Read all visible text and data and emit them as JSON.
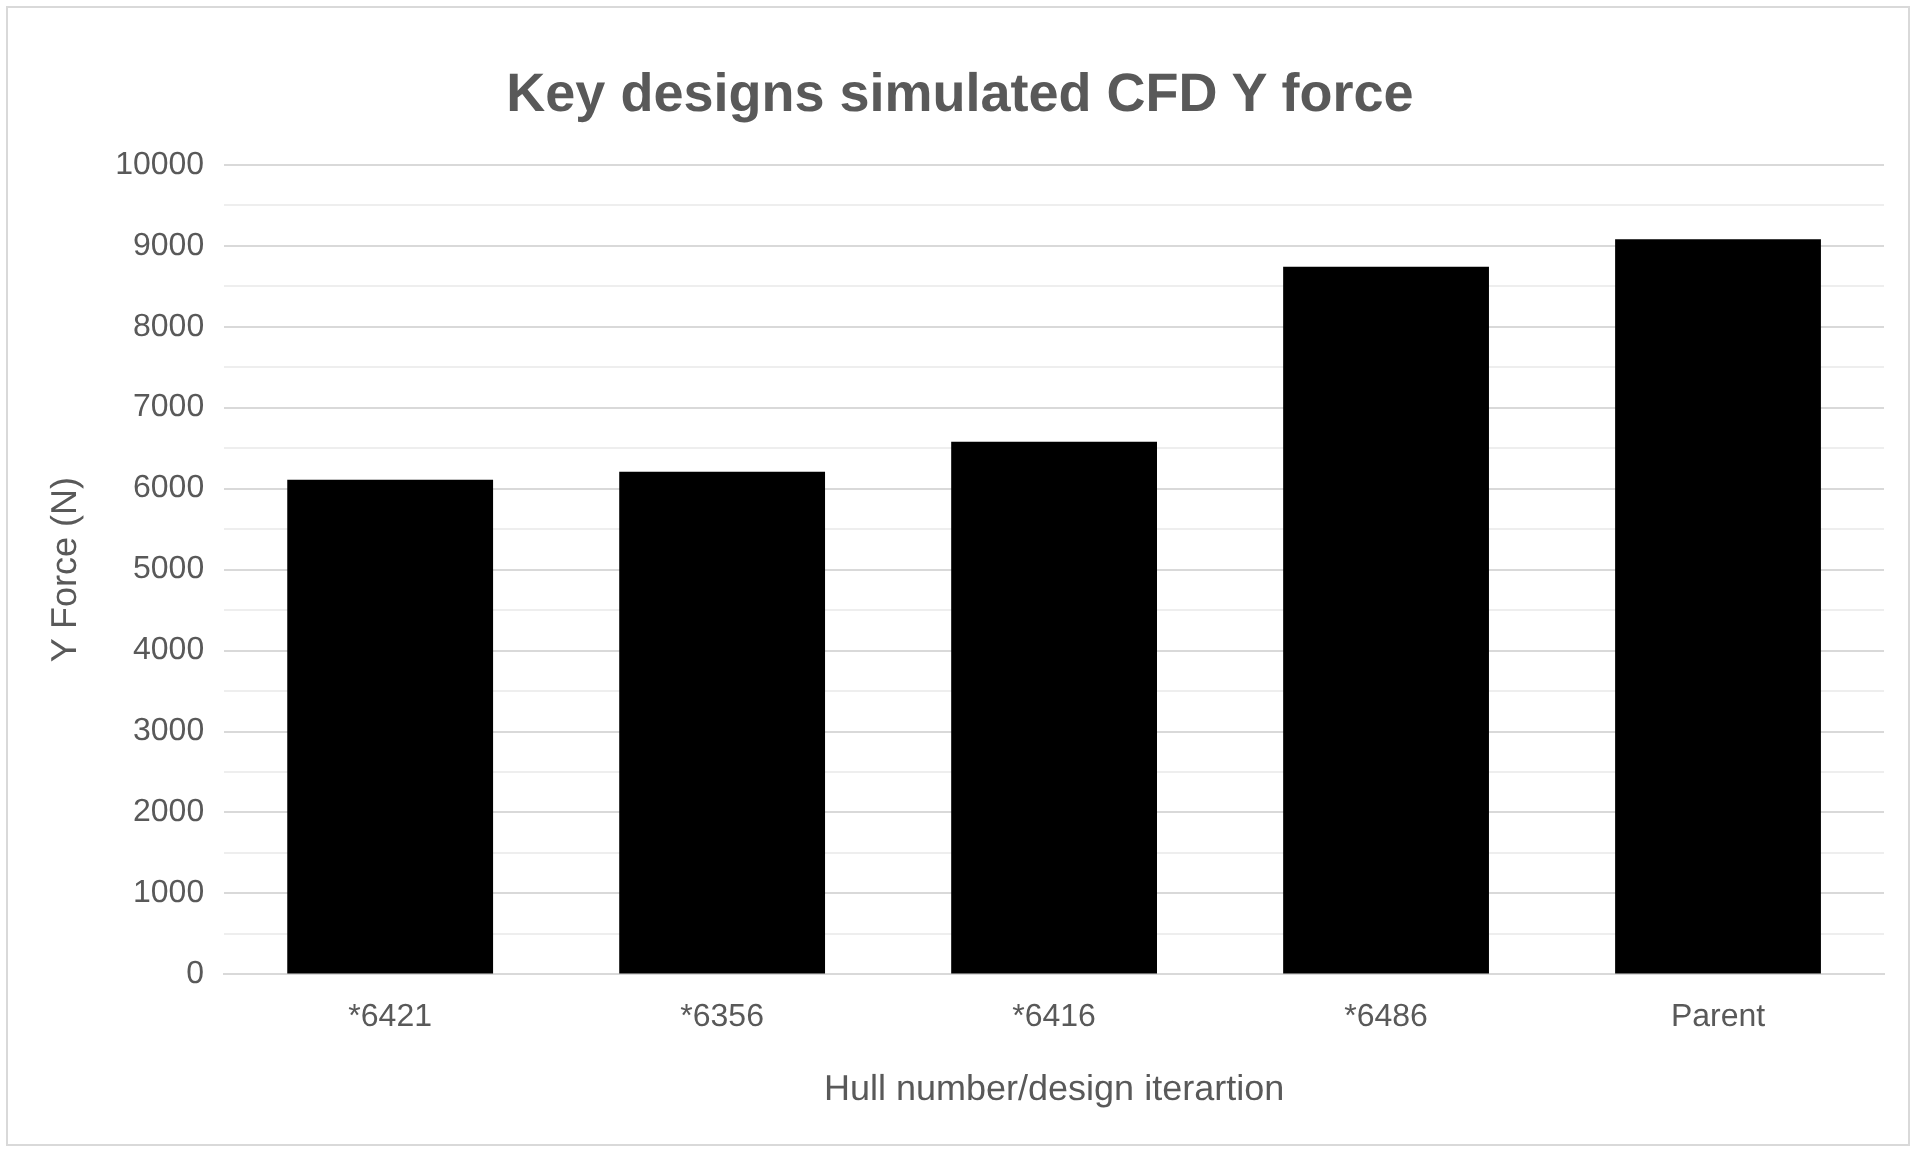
{
  "chart_data": {
    "type": "bar",
    "title": "Key designs simulated CFD Y force",
    "xlabel": "Hull number/design iterartion",
    "ylabel": "Y Force (N)",
    "categories": [
      "*6421",
      "*6356",
      "*6416",
      "*6486",
      "Parent"
    ],
    "values": [
      6110,
      6210,
      6580,
      8740,
      9080
    ],
    "color": "#000000",
    "ylim": [
      0,
      10000
    ],
    "yticks": [
      0,
      {
        "value": 500,
        "label": null
      },
      1000,
      {
        "value": 1500,
        "label": null
      },
      2000,
      {
        "value": 2500,
        "label": null
      },
      3000,
      {
        "value": 3500,
        "label": null
      },
      4000,
      {
        "value": 4500,
        "label": null
      },
      5000,
      {
        "value": 5500,
        "label": null
      },
      6000,
      {
        "value": 6500,
        "label": null
      },
      7000,
      {
        "value": 7500,
        "label": null
      },
      8000,
      {
        "value": 8500,
        "label": null
      },
      9000,
      {
        "value": 9500,
        "label": null
      },
      10000
    ],
    "grid": true,
    "legend": false
  }
}
